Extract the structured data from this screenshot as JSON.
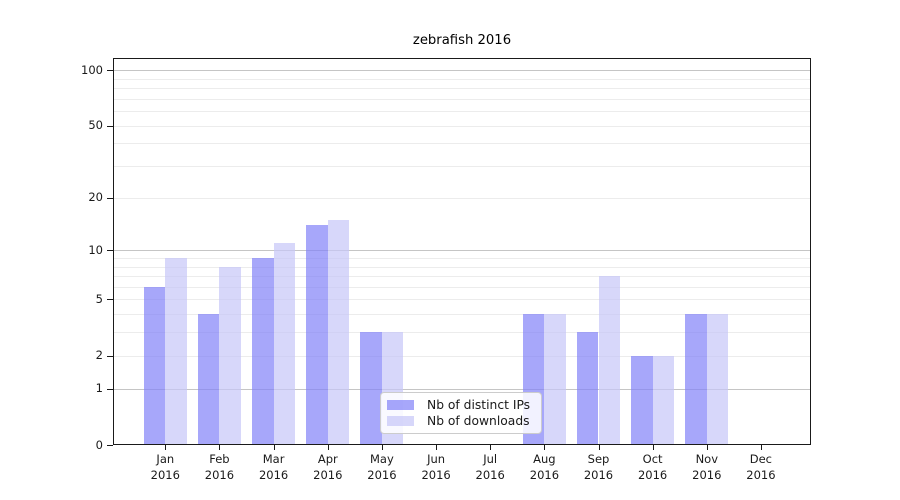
{
  "window": {
    "background": "#ffffff"
  },
  "chart_data": {
    "type": "bar",
    "title": "zebrafish 2016",
    "categories": [
      "Jan 2016",
      "Feb 2016",
      "Mar 2016",
      "Apr 2016",
      "May 2016",
      "Jun 2016",
      "Jul 2016",
      "Aug 2016",
      "Sep 2016",
      "Oct 2016",
      "Nov 2016",
      "Dec 2016"
    ],
    "series": [
      {
        "name": "Nb of distinct IPs",
        "values": [
          6,
          4,
          9,
          14,
          3,
          0,
          0,
          4,
          3,
          2,
          4,
          0
        ],
        "color": "rgba(130,130,248,0.7)",
        "flat_color_on_white": "#a9a9fa"
      },
      {
        "name": "Nb of downloads",
        "values": [
          9,
          8,
          11,
          15,
          3,
          0,
          0,
          4,
          7,
          2,
          4,
          0
        ],
        "color": "rgba(198,198,248,0.7)",
        "flat_color_on_white": "#d8d8fa"
      }
    ],
    "xlabel": "",
    "ylabel": "",
    "yscale": "log1p",
    "ylim": [
      0,
      117
    ],
    "y_tick_values": [
      0,
      1,
      2,
      5,
      10,
      20,
      50,
      100
    ],
    "y_major_gridlines": [
      1,
      10,
      100
    ],
    "y_minor_gridlines": [
      2,
      3,
      4,
      5,
      6,
      7,
      8,
      9,
      20,
      30,
      40,
      50,
      60,
      70,
      80,
      90
    ],
    "grid": "on",
    "legend": {
      "position": "lower center",
      "entries": [
        "Nb of distinct IPs",
        "Nb of downloads"
      ]
    },
    "colors": {
      "grid_major": "#c5c5c5",
      "grid_minor": "#ececec",
      "axis": "#1a1a1a",
      "title_text": "#000000"
    }
  }
}
